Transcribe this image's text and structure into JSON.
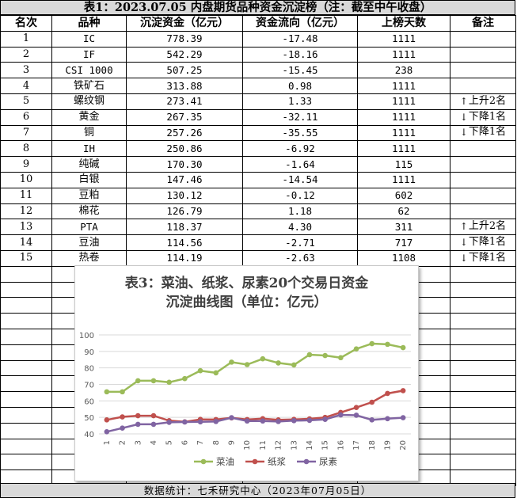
{
  "title": "表1：2023.07.05 内盘期货品种资金沉淀榜（注：截至中午收盘）",
  "headers": [
    "名次",
    "品种",
    "沉淀资金（亿元）",
    "资金流向（亿元）",
    "上榜天数",
    "备注"
  ],
  "rows": [
    {
      "rank": "1",
      "name": "IC",
      "amount": "778.39",
      "flow": "-17.48",
      "days": "1111",
      "note": "",
      "dir": ""
    },
    {
      "rank": "2",
      "name": "IF",
      "amount": "542.29",
      "flow": "-18.16",
      "days": "1111",
      "note": "",
      "dir": ""
    },
    {
      "rank": "3",
      "name": "CSI 1000",
      "amount": "507.25",
      "flow": "-15.45",
      "days": "238",
      "note": "",
      "dir": ""
    },
    {
      "rank": "4",
      "name": "铁矿石",
      "amount": "313.88",
      "flow": "0.98",
      "days": "1111",
      "note": "",
      "dir": ""
    },
    {
      "rank": "5",
      "name": "螺纹钢",
      "amount": "273.41",
      "flow": "1.33",
      "days": "1111",
      "note": "上升2名",
      "dir": "↑"
    },
    {
      "rank": "6",
      "name": "黄金",
      "amount": "267.35",
      "flow": "-32.11",
      "days": "1111",
      "note": "下降1名",
      "dir": "↓"
    },
    {
      "rank": "7",
      "name": "铜",
      "amount": "257.26",
      "flow": "-35.55",
      "days": "1111",
      "note": "下降1名",
      "dir": "↓"
    },
    {
      "rank": "8",
      "name": "IH",
      "amount": "250.86",
      "flow": "-6.92",
      "days": "1111",
      "note": "",
      "dir": ""
    },
    {
      "rank": "9",
      "name": "纯碱",
      "amount": "170.30",
      "flow": "-1.64",
      "days": "115",
      "note": "",
      "dir": ""
    },
    {
      "rank": "10",
      "name": "白银",
      "amount": "147.46",
      "flow": "-14.54",
      "days": "1111",
      "note": "",
      "dir": ""
    },
    {
      "rank": "11",
      "name": "豆粕",
      "amount": "130.12",
      "flow": "-0.12",
      "days": "602",
      "note": "",
      "dir": ""
    },
    {
      "rank": "12",
      "name": "棉花",
      "amount": "126.79",
      "flow": "1.18",
      "days": "62",
      "note": "",
      "dir": ""
    },
    {
      "rank": "13",
      "name": "PTA",
      "amount": "118.37",
      "flow": "4.30",
      "days": "311",
      "note": "上升2名",
      "dir": "↑"
    },
    {
      "rank": "14",
      "name": "豆油",
      "amount": "114.56",
      "flow": "-2.71",
      "days": "717",
      "note": "下降1名",
      "dir": "↓"
    },
    {
      "rank": "15",
      "name": "热卷",
      "amount": "114.19",
      "flow": "-2.63",
      "days": "1108",
      "note": "下降1名",
      "dir": "↓"
    }
  ],
  "footer": "数据统计：七禾研究中心（2023年07月05日）",
  "chart_data": {
    "type": "line",
    "title": "表3：菜油、纸浆、尿素20个交易日资金沉淀曲线图（单位：亿元）",
    "title_lines": [
      "表3：菜油、纸浆、尿素20个交易日资金",
      "沉淀曲线图（单位：亿元）"
    ],
    "x": [
      "1",
      "2",
      "3",
      "4",
      "5",
      "6",
      "7",
      "8",
      "9",
      "10",
      "11",
      "12",
      "13",
      "14",
      "15",
      "16",
      "17",
      "18",
      "19",
      "20"
    ],
    "ylim": [
      40,
      100
    ],
    "yticks": [
      40,
      50,
      60,
      70,
      80,
      90,
      100
    ],
    "grid": true,
    "legend": "bottom",
    "series": [
      {
        "name": "菜油",
        "color": "#9bbb59",
        "values": [
          65.5,
          65.5,
          72.2,
          72.2,
          71.3,
          73.5,
          78.3,
          77.0,
          83.5,
          82.0,
          85.5,
          83.0,
          81.8,
          88.0,
          87.5,
          86.2,
          91.5,
          94.7,
          94.3,
          92.3
        ]
      },
      {
        "name": "纸浆",
        "color": "#c0504d",
        "values": [
          48.5,
          50.3,
          51.0,
          51.0,
          48.0,
          47.3,
          48.8,
          48.7,
          49.7,
          48.7,
          49.2,
          48.5,
          48.8,
          49.1,
          50.0,
          53.0,
          56.0,
          59.2,
          64.5,
          66.2
        ]
      },
      {
        "name": "尿素",
        "color": "#8064a2",
        "values": [
          41.3,
          43.5,
          45.8,
          45.8,
          47.0,
          47.2,
          47.3,
          47.5,
          49.8,
          47.8,
          47.8,
          47.5,
          48.0,
          48.2,
          48.8,
          51.5,
          51.3,
          48.5,
          49.2,
          49.8
        ]
      }
    ]
  }
}
